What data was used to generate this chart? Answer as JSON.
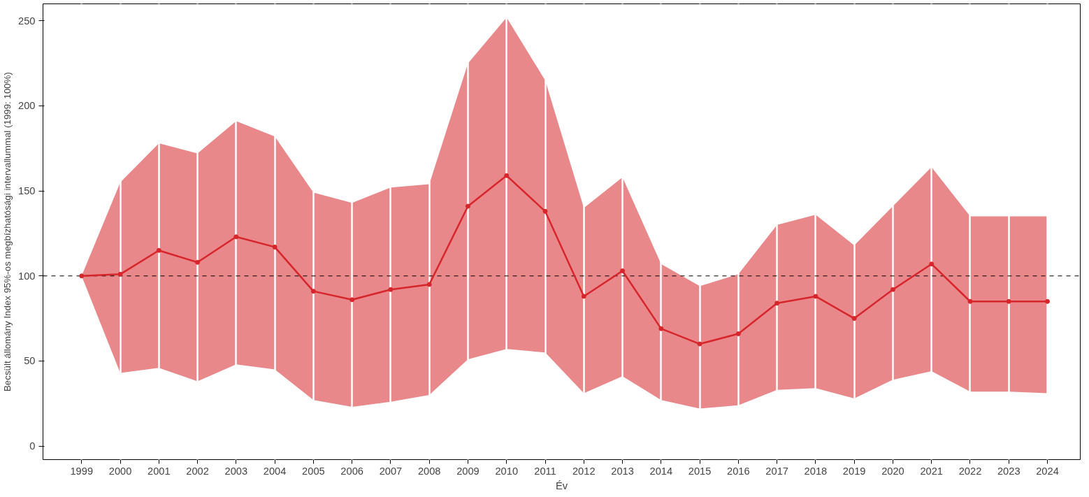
{
  "chart_data": {
    "type": "line",
    "xlabel": "Év",
    "ylabel": "Becsült állomány Index 95%-os megbízhatósági intervallummal (1999: 100%)",
    "categories": [
      "1999",
      "2000",
      "2001",
      "2002",
      "2003",
      "2004",
      "2005",
      "2006",
      "2007",
      "2008",
      "2009",
      "2010",
      "2011",
      "2012",
      "2013",
      "2014",
      "2015",
      "2016",
      "2017",
      "2018",
      "2019",
      "2020",
      "2021",
      "2022",
      "2023",
      "2024"
    ],
    "series": [
      {
        "color": "#d7262b",
        "marker": "circle",
        "line_style": "solid",
        "values": [
          100,
          101,
          115,
          108,
          123,
          117,
          91,
          86,
          92,
          95,
          141,
          159,
          138,
          88,
          103,
          69,
          60,
          66,
          84,
          88,
          75,
          92,
          107,
          85,
          85,
          85
        ],
        "lower": [
          100,
          43,
          46,
          38,
          48,
          45,
          27,
          23,
          26,
          30,
          51,
          57,
          55,
          31,
          41,
          27,
          22,
          24,
          33,
          34,
          28,
          39,
          44,
          32,
          32,
          31
        ],
        "upper": [
          100,
          155,
          178,
          172,
          191,
          182,
          149,
          143,
          152,
          154,
          225,
          252,
          215,
          140,
          158,
          107,
          94,
          101,
          130,
          136,
          118,
          141,
          164,
          135,
          135,
          135
        ]
      }
    ],
    "ylim": [
      -8,
      260
    ],
    "yticks": [
      0,
      50,
      100,
      150,
      200,
      250
    ],
    "ref_lines": [
      {
        "axis": "y",
        "value": 100,
        "label": null,
        "color": "#000000",
        "line_style": "dashed"
      }
    ],
    "grid": "x"
  }
}
